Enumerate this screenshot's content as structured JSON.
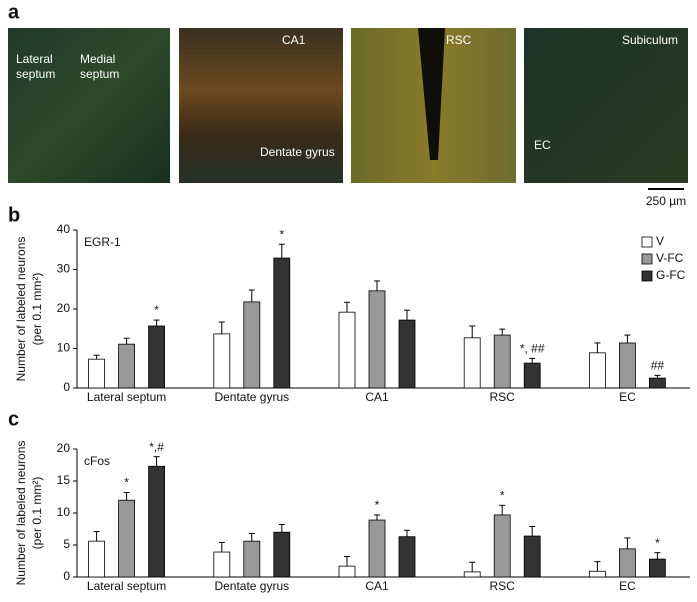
{
  "panel_labels": [
    "a",
    "b",
    "c"
  ],
  "images": [
    {
      "labels": [
        "Lateral septum",
        "Medial septum"
      ]
    },
    {
      "labels": [
        "CA1",
        "Dentate gyrus"
      ]
    },
    {
      "labels": [
        "RSC"
      ]
    },
    {
      "labels": [
        "Subiculum",
        "EC"
      ]
    }
  ],
  "scale_bar": "250 µm",
  "chart_data": [
    {
      "type": "bar",
      "label": "EGR-1",
      "ylabel": [
        "Number of labeled neurons",
        "(per 0.1 mm²)"
      ],
      "categories": [
        "Lateral septum",
        "Dentate gyrus",
        "CA1",
        "RSC",
        "EC"
      ],
      "ylim": [
        0,
        40
      ],
      "yticks": [
        0,
        10,
        20,
        30,
        40
      ],
      "legend": "top-right",
      "series": [
        {
          "name": "V",
          "color": "#ffffff",
          "values": [
            7.3,
            13.7,
            19.2,
            12.7,
            8.9
          ],
          "errors": [
            1,
            3,
            2.5,
            3,
            2.5
          ],
          "annotations": [
            null,
            null,
            null,
            null,
            null
          ]
        },
        {
          "name": "V-FC",
          "color": "#999999",
          "values": [
            11.1,
            21.8,
            24.6,
            13.4,
            11.4
          ],
          "errors": [
            1.5,
            3,
            2.5,
            1.5,
            2
          ],
          "annotations": [
            null,
            null,
            null,
            null,
            null
          ]
        },
        {
          "name": "G-FC",
          "color": "#333333",
          "values": [
            15.7,
            32.9,
            17.2,
            6.3,
            2.5
          ],
          "errors": [
            1.5,
            3.5,
            2.5,
            1.2,
            0.7
          ],
          "annotations": [
            "*",
            "*",
            null,
            "*, ##",
            "##"
          ]
        }
      ]
    },
    {
      "type": "bar",
      "label": "cFos",
      "ylabel": [
        "Number of labeled neurons",
        "(per 0.1 mm²)"
      ],
      "categories": [
        "Lateral septum",
        "Dentate gyrus",
        "CA1",
        "RSC",
        "EC"
      ],
      "ylim": [
        0,
        20
      ],
      "yticks": [
        0,
        5,
        10,
        15,
        20
      ],
      "series": [
        {
          "color": "#ffffff",
          "values": [
            5.6,
            3.9,
            1.7,
            0.8,
            0.9
          ],
          "errors": [
            1.5,
            1.5,
            1.5,
            1.5,
            1.5
          ],
          "annotations": [
            null,
            null,
            null,
            null,
            null
          ]
        },
        {
          "color": "#999999",
          "values": [
            12.0,
            5.6,
            8.9,
            9.7,
            4.4
          ],
          "errors": [
            1.2,
            1.2,
            0.8,
            1.5,
            1.7
          ],
          "annotations": [
            "*",
            null,
            "*",
            "*",
            null
          ]
        },
        {
          "color": "#333333",
          "values": [
            17.3,
            7.0,
            6.3,
            6.4,
            2.8
          ],
          "errors": [
            1.5,
            1.2,
            1,
            1.5,
            1
          ],
          "annotations": [
            "*,#",
            null,
            null,
            null,
            "*"
          ]
        }
      ]
    }
  ]
}
